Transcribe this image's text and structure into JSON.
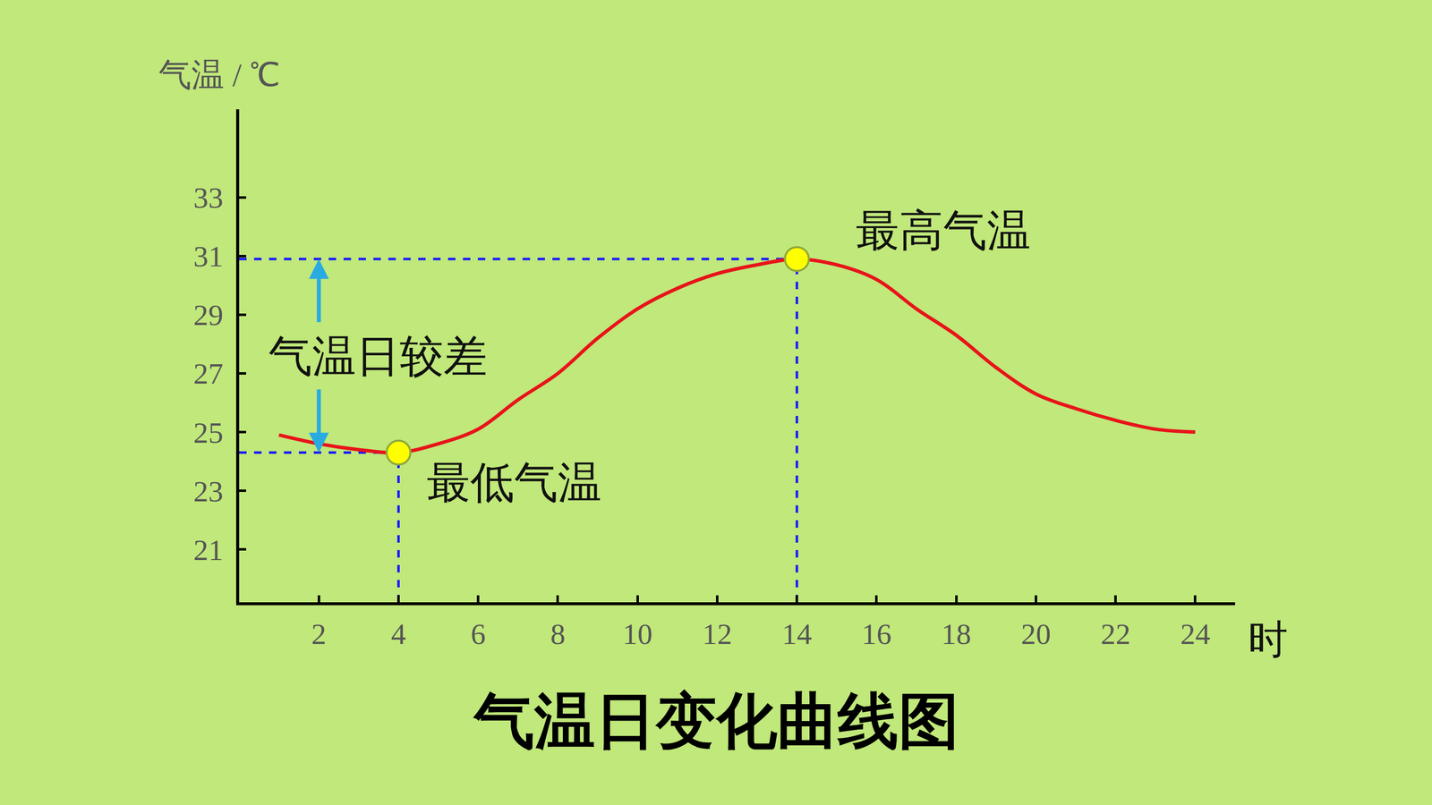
{
  "chart_data": {
    "type": "line",
    "title": "气温日变化曲线图",
    "x_label": "时",
    "y_label": "气温 / ℃",
    "x": [
      1,
      2,
      3,
      4,
      5,
      6,
      7,
      8,
      9,
      10,
      11,
      12,
      13,
      14,
      15,
      16,
      17,
      18,
      19,
      20,
      21,
      22,
      23,
      24
    ],
    "values": [
      24.9,
      24.6,
      24.4,
      24.3,
      24.6,
      25.1,
      26.1,
      27.0,
      28.2,
      29.2,
      29.9,
      30.4,
      30.7,
      30.9,
      30.7,
      30.2,
      29.2,
      28.3,
      27.2,
      26.3,
      25.8,
      25.4,
      25.1,
      25.0
    ],
    "color": "#e8141a",
    "xlim": [
      0,
      25
    ],
    "ylim": [
      19.2,
      36
    ],
    "xticks": [
      2,
      4,
      6,
      8,
      10,
      12,
      14,
      16,
      18,
      20,
      22,
      24
    ],
    "yticks": [
      21,
      23,
      25,
      27,
      29,
      31,
      33
    ],
    "grid": false,
    "annotations": [
      {
        "text": "最低气温",
        "x": 4,
        "y": 24.3
      },
      {
        "text": "最高气温",
        "x": 14,
        "y": 30.9
      }
    ],
    "range_label": "气温日较差"
  }
}
